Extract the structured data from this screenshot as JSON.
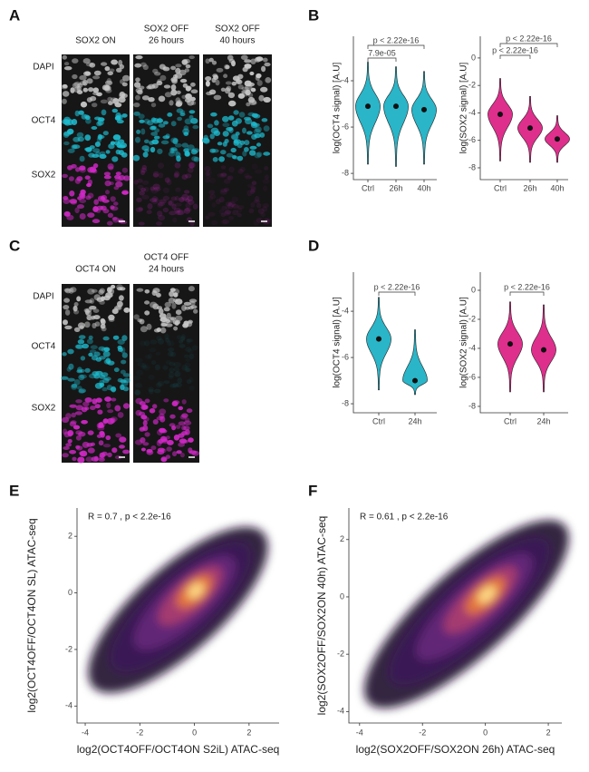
{
  "panel_labels": [
    "A",
    "B",
    "C",
    "D",
    "E",
    "F"
  ],
  "panel_A": {
    "columns": [
      [
        "SOX2 ON"
      ],
      [
        "SOX2 OFF",
        "26 hours"
      ],
      [
        "SOX2 OFF",
        "40 hours"
      ]
    ],
    "rows": [
      "DAPI",
      "OCT4",
      "SOX2"
    ]
  },
  "panel_C": {
    "columns": [
      [
        "OCT4 ON"
      ],
      [
        "OCT4 OFF",
        "24 hours"
      ]
    ],
    "rows": [
      "DAPI",
      "OCT4",
      "SOX2"
    ]
  },
  "chart_data": [
    {
      "type": "violin",
      "ylabel": "log(OCT4 signal) [A.U]",
      "categories": [
        "Ctrl",
        "26h",
        "40h"
      ],
      "color": "#2ab5c8",
      "medians": [
        -5.1,
        -5.1,
        -5.25
      ],
      "mins": [
        -7.6,
        -7.7,
        -7.6
      ],
      "maxs": [
        -3.2,
        -3.4,
        -3.6
      ],
      "ylim": [
        -8.27,
        -2.08
      ],
      "yticks": [
        -8,
        -6,
        -4
      ],
      "annotations": [
        "p < 2.22e-16",
        "7.9e-05"
      ]
    },
    {
      "type": "violin",
      "ylabel": "log(SOX2 signal) [A.U]",
      "categories": [
        "Ctrl",
        "26h",
        "40h"
      ],
      "color": "#de2f8c",
      "medians": [
        -4.1,
        -5.1,
        -5.9
      ],
      "mins": [
        -7.5,
        -7.6,
        -7.6
      ],
      "maxs": [
        -1.5,
        -2.8,
        -4.2
      ],
      "ylim": [
        -8.86,
        1.58
      ],
      "yticks": [
        -8,
        -6,
        -4,
        -2,
        0
      ],
      "annotations": [
        "p < 2.22e-16",
        "p < 2.22e-16"
      ]
    },
    {
      "type": "violin",
      "ylabel": "log(OCT4 signal) [A.U]",
      "categories": [
        "Ctrl",
        "24h"
      ],
      "color": "#2ab5c8",
      "medians": [
        -5.2,
        -7.0
      ],
      "mins": [
        -7.4,
        -7.6
      ],
      "maxs": [
        -3.4,
        -4.8
      ],
      "ylim": [
        -8.39,
        -2.31
      ],
      "yticks": [
        -8,
        -6,
        -4
      ],
      "annotations": [
        "p < 2.22e-16"
      ]
    },
    {
      "type": "violin",
      "ylabel": "log(SOX2 signal) [A.U]",
      "categories": [
        "Ctrl",
        "24h"
      ],
      "color": "#de2f8c",
      "medians": [
        -3.7,
        -4.1
      ],
      "mins": [
        -7.0,
        -7.0
      ],
      "maxs": [
        -0.8,
        -1.0
      ],
      "ylim": [
        -8.44,
        1.25
      ],
      "yticks": [
        -8,
        -6,
        -4,
        -2,
        0
      ],
      "annotations": [
        "p < 2.22e-16"
      ]
    },
    {
      "type": "density",
      "xlabel": "log2(OCT4OFF/OCT4ON S2iL) ATAC-seq",
      "ylabel": "log2(OCT4OFF/OCT4ON SL) ATAC-seq",
      "annotation": "R = 0.7 , p < 2.2e-16",
      "xlim": [
        -4.3,
        3.1
      ],
      "ylim": [
        -4.6,
        3.0
      ],
      "xticks": [
        -4,
        -2,
        0,
        2
      ],
      "yticks": [
        -4,
        -2,
        0,
        2
      ]
    },
    {
      "type": "density",
      "xlabel": "log2(SOX2OFF/SOX2ON 26h) ATAC-seq",
      "ylabel": "log2(SOX2OFF/SOX2ON 40h) ATAC-seq",
      "annotation": "R = 0.61 , p < 2.2e-16",
      "xlim": [
        -4.34,
        2.43
      ],
      "ylim": [
        -4.4,
        3.1
      ],
      "xticks": [
        -4,
        -2,
        0,
        2
      ],
      "yticks": [
        -4,
        -2,
        0,
        2
      ]
    }
  ]
}
